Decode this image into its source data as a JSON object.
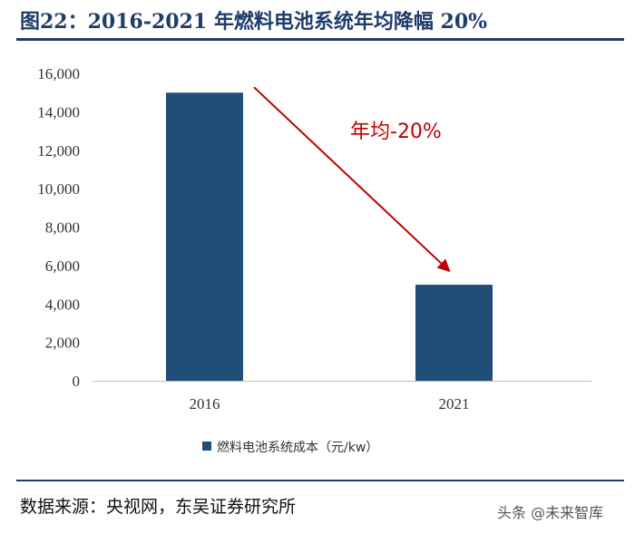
{
  "header": {
    "title": "图22：2016-2021 年燃料电池系统年均降幅 20%"
  },
  "chart_data": {
    "type": "bar",
    "title": "图22：2016-2021 年燃料电池系统年均降幅 20%",
    "categories": [
      "2016",
      "2021"
    ],
    "series": [
      {
        "name": "燃料电池系统成本（元/kw）",
        "values": [
          15000,
          5000
        ]
      }
    ],
    "ylim": [
      0,
      16000
    ],
    "yticks": [
      0,
      2000,
      4000,
      6000,
      8000,
      10000,
      12000,
      14000,
      16000
    ],
    "ytick_labels": [
      "0",
      "2,000",
      "4,000",
      "6,000",
      "8,000",
      "10,000",
      "12,000",
      "14,000",
      "16,000"
    ],
    "xlabel": "",
    "ylabel": "",
    "grid": false,
    "legend_position": "bottom",
    "annotation": {
      "text": "年均-20%",
      "color": "#c00000"
    },
    "bar_color": "#1f4e79"
  },
  "footer": {
    "source": "数据来源：央视网，东吴证券研究所",
    "watermark": "头条 @未来智库"
  }
}
